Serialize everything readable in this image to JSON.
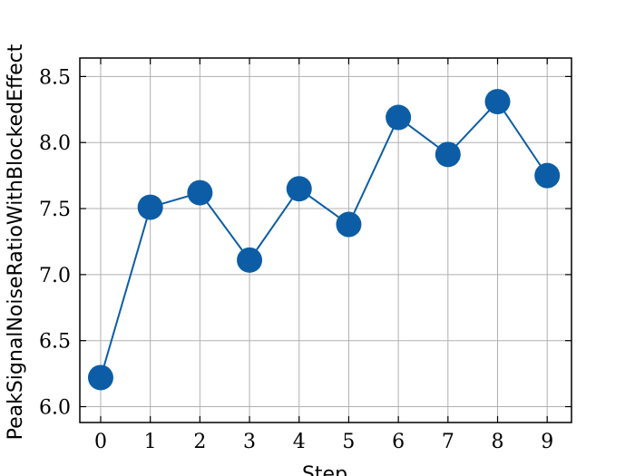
{
  "chart_data": {
    "type": "line",
    "x_label": "Step",
    "y_label": "PeakSignalNoiseRatioWithBlockedEffect",
    "x": [
      0,
      1,
      2,
      3,
      4,
      5,
      6,
      7,
      8,
      9
    ],
    "series": [
      {
        "name": "PeakSignalNoiseRatioWithBlockedEffect",
        "color": "#0c5da5",
        "values": [
          6.22,
          7.51,
          7.62,
          7.11,
          7.65,
          7.38,
          8.19,
          7.91,
          8.31,
          7.75
        ]
      }
    ],
    "xlim": [
      -0.42,
      9.49
    ],
    "ylim": [
      5.88,
      8.64
    ],
    "xticks": [
      0,
      1,
      2,
      3,
      4,
      5,
      6,
      7,
      8,
      9
    ],
    "yticks": [
      {
        "value": 6.0,
        "label": "6.0"
      },
      {
        "value": 6.5,
        "label": "6.5"
      },
      {
        "value": 7.0,
        "label": "7.0"
      },
      {
        "value": 7.5,
        "label": "7.5"
      },
      {
        "value": 8.0,
        "label": "8.0"
      },
      {
        "value": 8.5,
        "label": "8.5"
      }
    ],
    "grid": true
  }
}
